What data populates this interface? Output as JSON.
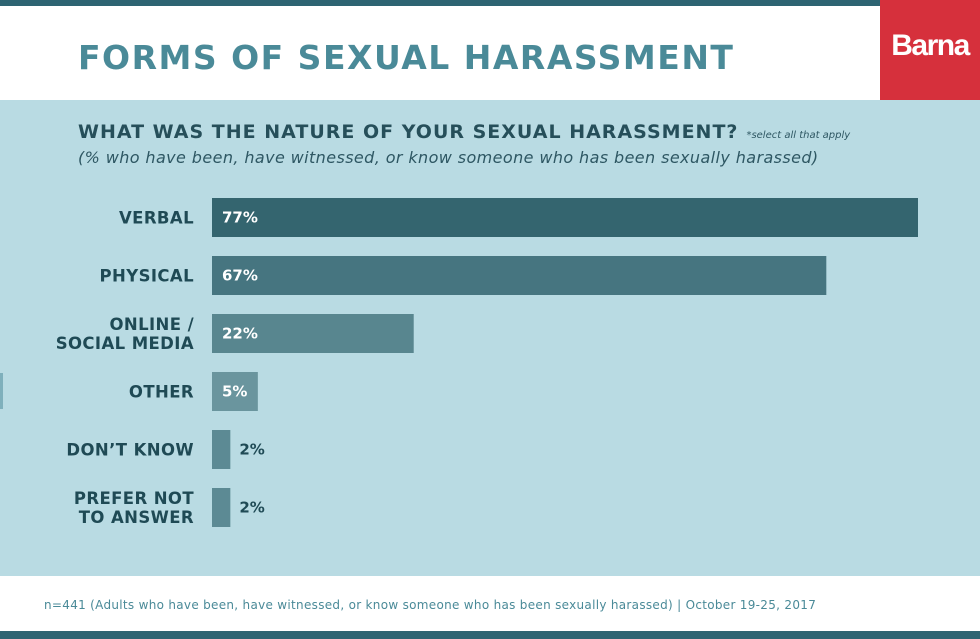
{
  "header": {
    "title": "FORMS OF SEXUAL HARASSMENT",
    "logo_text": "Barna"
  },
  "colors": {
    "brand_red": "#d6303c",
    "panel_bg": "#b9dbe3",
    "bar_colors": [
      "#34656f",
      "#467580",
      "#58868f",
      "#6a959e",
      "#5c8a94",
      "#5c8a94"
    ]
  },
  "chart_data": {
    "type": "bar",
    "orientation": "horizontal",
    "title": "WHAT WAS THE NATURE OF YOUR SEXUAL HARASSMENT?",
    "title_note": "*select all that apply",
    "subtitle": "(% who have been, have witnessed, or know someone who has been sexually harassed)",
    "categories": [
      [
        "VERBAL"
      ],
      [
        "PHYSICAL"
      ],
      [
        "ONLINE /",
        "SOCIAL MEDIA"
      ],
      [
        "OTHER"
      ],
      [
        "DON’T KNOW"
      ],
      [
        "PREFER NOT",
        "TO ANSWER"
      ]
    ],
    "values": [
      77,
      67,
      22,
      5,
      2,
      2
    ],
    "value_labels": [
      "77%",
      "67%",
      "22%",
      "5%",
      "2%",
      "2%"
    ],
    "xlim": [
      0,
      77
    ],
    "grid": false,
    "legend": "none"
  },
  "footer": {
    "note": "n=441 (Adults who have been, have witnessed, or know someone who has been sexually harassed) | October 19-25, 2017"
  }
}
